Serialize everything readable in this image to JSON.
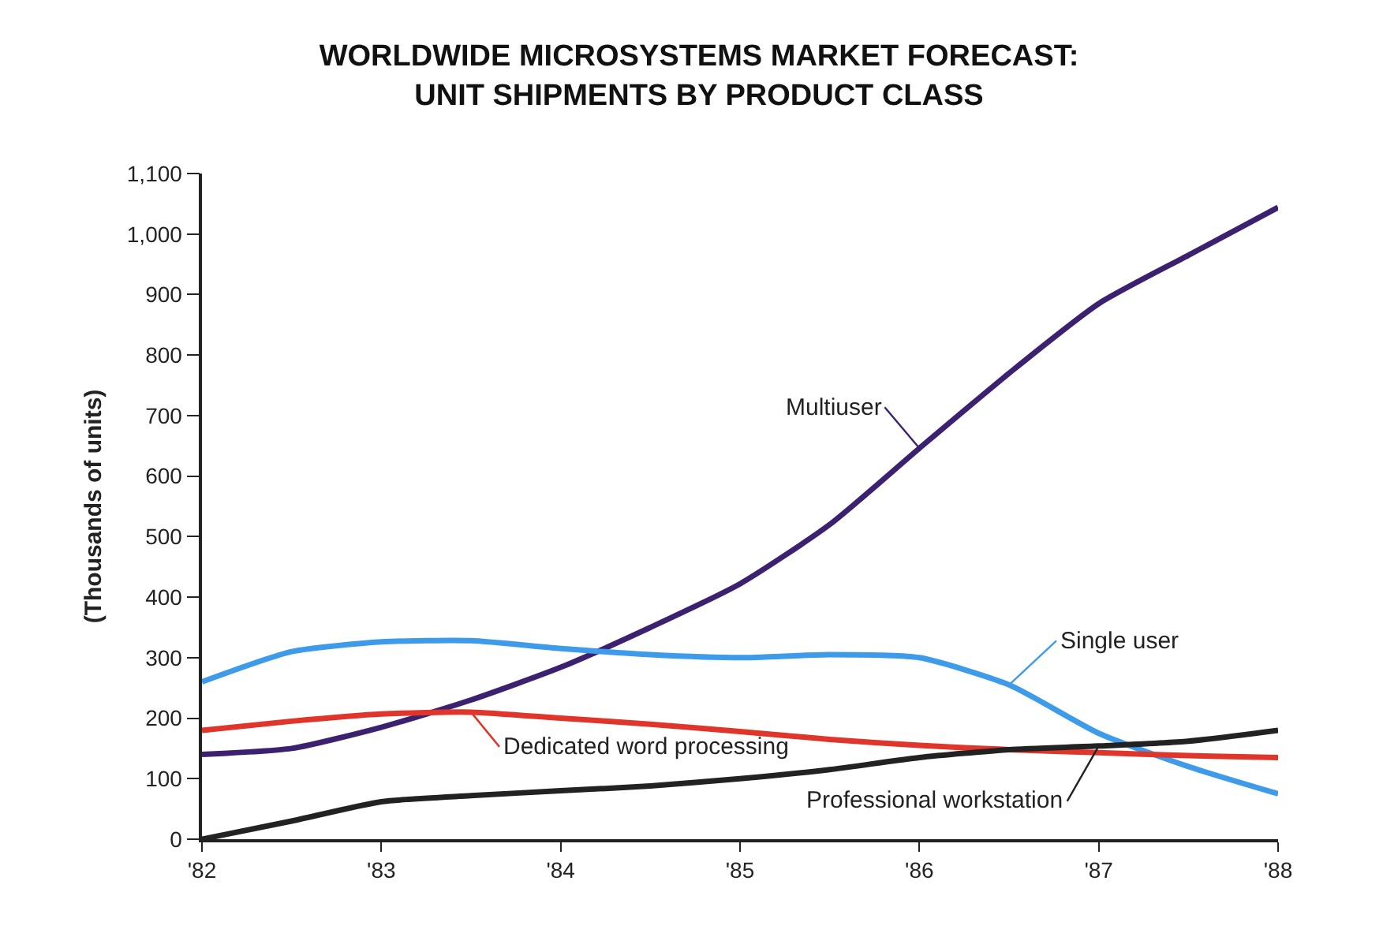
{
  "chart_data": {
    "type": "line",
    "title": "WORLDWIDE MICROSYSTEMS MARKET FORECAST:\nUNIT SHIPMENTS BY PRODUCT CLASS",
    "ylabel": "(Thousands of units)",
    "x": [
      1982,
      1982.5,
      1983,
      1983.5,
      1984,
      1984.5,
      1985,
      1985.5,
      1986,
      1986.5,
      1987,
      1987.5,
      1988
    ],
    "series": [
      {
        "name": "Multiuser",
        "color": "#3b2170",
        "values": [
          140,
          150,
          185,
          230,
          284,
          350,
          422,
          520,
          646,
          770,
          885,
          965,
          1044
        ]
      },
      {
        "name": "Single user",
        "color": "#3d9be9",
        "values": [
          260,
          310,
          326,
          328,
          315,
          305,
          300,
          305,
          300,
          255,
          175,
          120,
          75
        ]
      },
      {
        "name": "Dedicated word processing",
        "color": "#e0352b",
        "values": [
          180,
          195,
          207,
          210,
          200,
          190,
          178,
          165,
          155,
          148,
          143,
          138,
          135
        ]
      },
      {
        "name": "Professional workstation",
        "color": "#222222",
        "values": [
          0,
          30,
          62,
          72,
          80,
          88,
          100,
          115,
          135,
          148,
          154,
          162,
          180
        ]
      }
    ],
    "xlim": [
      1982,
      1988
    ],
    "xticks": [
      {
        "value": 1982,
        "label": "'82"
      },
      {
        "value": 1983,
        "label": "'83"
      },
      {
        "value": 1984,
        "label": "'84"
      },
      {
        "value": 1985,
        "label": "'85"
      },
      {
        "value": 1986,
        "label": "'86"
      },
      {
        "value": 1987,
        "label": "'87"
      },
      {
        "value": 1988,
        "label": "'88"
      }
    ],
    "ylim": [
      0,
      1100
    ],
    "yticks": [
      0,
      100,
      200,
      {
        "value": 300,
        "label": "300"
      },
      400,
      500,
      600,
      700,
      800,
      900,
      {
        "value": 1000,
        "label": "1,000"
      },
      {
        "value": 1100,
        "label": "1,100"
      }
    ],
    "grid": false,
    "legend": false,
    "marker": "none",
    "line_style": "solid"
  }
}
